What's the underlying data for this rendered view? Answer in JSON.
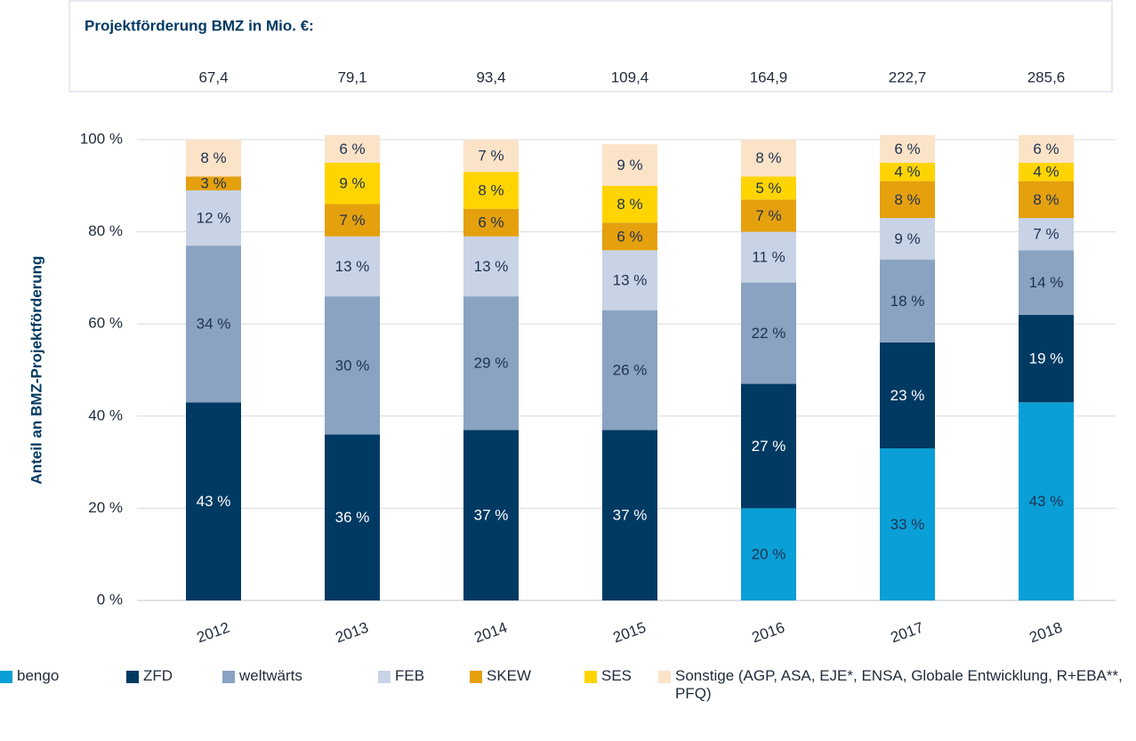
{
  "chart_data": {
    "type": "stacked-bar",
    "header_title": "Projektförderung BMZ in Mio. €:",
    "header_values": [
      "67,4",
      "79,1",
      "93,4",
      "109,4",
      "164,9",
      "222,7",
      "285,6"
    ],
    "y_label": "Anteil an BMZ-Projektförderung",
    "categories": [
      "2012",
      "2013",
      "2014",
      "2015",
      "2016",
      "2017",
      "2018"
    ],
    "ylim": [
      0,
      100
    ],
    "yticks": [
      {
        "value": 0,
        "label": "0 %"
      },
      {
        "value": 20,
        "label": "20 %"
      },
      {
        "value": 40,
        "label": "40 %"
      },
      {
        "value": 60,
        "label": "60 %"
      },
      {
        "value": 80,
        "label": "80 %"
      },
      {
        "value": 100,
        "label": "100 %"
      }
    ],
    "grid": true,
    "legend": "bottom",
    "series": [
      {
        "name": "bengo",
        "color": "#0a9fd6",
        "values": [
          null,
          null,
          null,
          null,
          20,
          33,
          43
        ],
        "value_labels": [
          null,
          null,
          null,
          null,
          "20 %",
          "33 %",
          "43 %"
        ]
      },
      {
        "name": "ZFD",
        "color": "#003a63",
        "values": [
          43,
          36,
          37,
          37,
          27,
          23,
          19
        ],
        "value_labels": [
          "43 %",
          "36 %",
          "37 %",
          "37 %",
          "27 %",
          "23 %",
          "19 %"
        ]
      },
      {
        "name": "weltwärts",
        "color": "#8aa3c2",
        "values": [
          34,
          30,
          29,
          26,
          22,
          18,
          14
        ],
        "value_labels": [
          "34 %",
          "30 %",
          "29 %",
          "26 %",
          "22 %",
          "18 %",
          "14 %"
        ]
      },
      {
        "name": "FEB",
        "color": "#c8d3e6",
        "values": [
          12,
          13,
          13,
          13,
          11,
          9,
          7
        ],
        "value_labels": [
          "12 %",
          "13 %",
          "13 %",
          "13 %",
          "11 %",
          "9 %",
          "7 %"
        ]
      },
      {
        "name": "SKEW",
        "color": "#e5a00e",
        "values": [
          3,
          7,
          6,
          6,
          7,
          8,
          8
        ],
        "value_labels": [
          "3 %",
          "7 %",
          "6 %",
          "6 %",
          "7 %",
          "8 %",
          "8 %"
        ]
      },
      {
        "name": "SES",
        "color": "#ffd400",
        "values": [
          null,
          9,
          8,
          8,
          5,
          4,
          4
        ],
        "value_labels": [
          null,
          "9 %",
          "8 %",
          "8 %",
          "5 %",
          "4 %",
          "4 %"
        ]
      },
      {
        "name": "Sonstige (AGP, ASA, EJE*, ENSA, Globale Entwicklung, R+EBA**, PFQ)",
        "color": "#fbe3c8",
        "values": [
          8,
          6,
          7,
          9,
          8,
          6,
          6
        ],
        "value_labels": [
          "8 %",
          "6 %",
          "7 %",
          "9 %",
          "8 %",
          "6 %",
          "6 %"
        ]
      }
    ]
  }
}
